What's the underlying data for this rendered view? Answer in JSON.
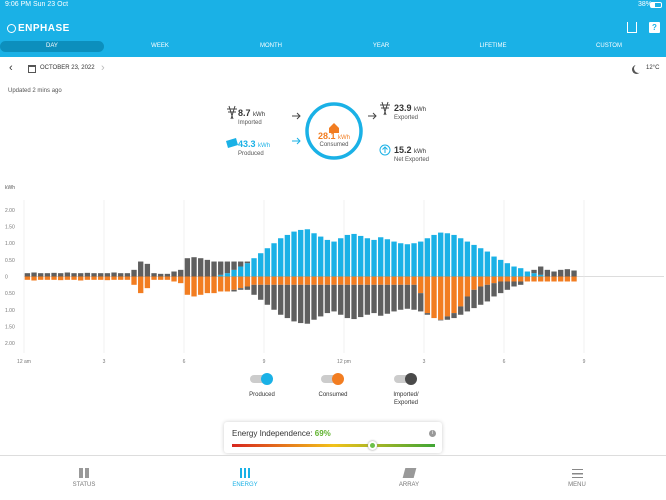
{
  "status_bar": {
    "time": "9:06 PM",
    "date": "Sun 23 Oct",
    "battery": "38%"
  },
  "header": {
    "brand": "ENPHASE",
    "tabs": [
      "DAY",
      "WEEK",
      "MONTH",
      "YEAR",
      "LIFETIME",
      "CUSTOM"
    ]
  },
  "date_nav": {
    "date": "OCTOBER 23, 2022",
    "temperature": "12°C"
  },
  "updated": "Updated 2 mins ago",
  "summary": {
    "imported": {
      "value": 8.7,
      "unit": "kWh",
      "label": "Imported"
    },
    "produced": {
      "value": 43.3,
      "unit": "kWh",
      "label": "Produced"
    },
    "consumed": {
      "value": 28.1,
      "unit": "kWh",
      "label": "Consumed"
    },
    "exported": {
      "value": 23.9,
      "unit": "kWh",
      "label": "Exported"
    },
    "net_exported": {
      "value": 15.2,
      "unit": "kWh",
      "label": "Net Exported"
    }
  },
  "chart_data": {
    "type": "bar",
    "y_label": "kWh",
    "grid": true,
    "x": [
      0,
      0.25,
      0.5,
      0.75,
      1,
      1.25,
      1.5,
      1.75,
      2,
      2.25,
      2.5,
      2.75,
      3,
      3.25,
      3.5,
      3.75,
      4,
      4.25,
      4.5,
      4.75,
      5,
      5.25,
      5.5,
      5.75,
      6,
      6.25,
      6.5,
      6.75,
      7,
      7.25,
      7.5,
      7.75,
      8,
      8.25,
      8.5,
      8.75,
      9,
      9.25,
      9.5,
      9.75,
      10,
      10.25,
      10.5,
      10.75,
      11,
      11.25,
      11.5,
      11.75,
      12,
      12.25,
      12.5,
      12.75,
      13,
      13.25,
      13.5,
      13.75,
      14,
      14.25,
      14.5,
      14.75,
      15,
      15.25,
      15.5,
      15.75,
      16,
      16.25,
      16.5,
      16.75,
      17,
      17.25,
      17.5,
      17.75,
      18,
      18.25,
      18.5,
      18.75,
      19,
      19.25,
      19.5,
      19.75,
      20,
      20.25,
      20.5
    ],
    "series": [
      {
        "name": "Produced",
        "color": "#1ab1e6",
        "values": [
          0,
          0,
          0,
          0,
          0,
          0,
          0,
          0,
          0,
          0,
          0,
          0,
          0,
          0,
          0,
          0,
          0,
          0,
          0,
          0,
          0,
          0,
          0,
          0,
          0,
          0,
          0,
          0,
          0,
          0.05,
          0.1,
          0.2,
          0.3,
          0.4,
          0.55,
          0.7,
          0.85,
          1,
          1.15,
          1.25,
          1.35,
          1.4,
          1.42,
          1.3,
          1.2,
          1.1,
          1.05,
          1.15,
          1.25,
          1.28,
          1.22,
          1.15,
          1.1,
          1.18,
          1.12,
          1.05,
          1,
          0.97,
          1,
          1.05,
          1.15,
          1.25,
          1.32,
          1.3,
          1.25,
          1.15,
          1.05,
          0.95,
          0.85,
          0.75,
          0.6,
          0.5,
          0.4,
          0.3,
          0.25,
          0.15,
          0.1,
          0.05,
          0,
          0,
          0,
          0,
          0
        ]
      },
      {
        "name": "Imported",
        "color": "#5f5f5f",
        "values": [
          0.1,
          0.12,
          0.1,
          0.1,
          0.11,
          0.1,
          0.12,
          0.1,
          0.1,
          0.11,
          0.1,
          0.1,
          0.1,
          0.12,
          0.1,
          0.1,
          0.2,
          0.45,
          0.38,
          0.1,
          0.08,
          0.08,
          0.15,
          0.2,
          0.55,
          0.58,
          0.55,
          0.5,
          0.45,
          0.4,
          0.35,
          0.25,
          0.15,
          0.05,
          0,
          0,
          0,
          0,
          0,
          0,
          0,
          0,
          0,
          0,
          0,
          0,
          0,
          0,
          0,
          0,
          0,
          0,
          0,
          0,
          0,
          0,
          0,
          0,
          0,
          0,
          0,
          0,
          0,
          0,
          0,
          0,
          0,
          0,
          0,
          0,
          0,
          0,
          0,
          0,
          0,
          0,
          0.1,
          0.25,
          0.2,
          0.15,
          0.2,
          0.22,
          0.18
        ]
      },
      {
        "name": "Consumed",
        "color": "#f27d21",
        "values": [
          -0.1,
          -0.12,
          -0.1,
          -0.1,
          -0.1,
          -0.11,
          -0.1,
          -0.1,
          -0.12,
          -0.1,
          -0.1,
          -0.1,
          -0.11,
          -0.1,
          -0.1,
          -0.1,
          -0.25,
          -0.5,
          -0.35,
          -0.1,
          -0.1,
          -0.1,
          -0.15,
          -0.2,
          -0.55,
          -0.6,
          -0.55,
          -0.5,
          -0.5,
          -0.45,
          -0.45,
          -0.4,
          -0.35,
          -0.3,
          -0.25,
          -0.25,
          -0.25,
          -0.25,
          -0.25,
          -0.25,
          -0.25,
          -0.25,
          -0.25,
          -0.25,
          -0.25,
          -0.25,
          -0.25,
          -0.25,
          -0.25,
          -0.25,
          -0.25,
          -0.25,
          -0.25,
          -0.25,
          -0.25,
          -0.25,
          -0.25,
          -0.25,
          -0.25,
          -0.5,
          -1.1,
          -1.25,
          -1.3,
          -1.2,
          -1.1,
          -0.9,
          -0.6,
          -0.4,
          -0.3,
          -0.25,
          -0.2,
          -0.15,
          -0.15,
          -0.15,
          -0.15,
          -0.15,
          -0.15,
          -0.15,
          -0.15,
          -0.15,
          -0.15,
          -0.15,
          -0.15
        ]
      },
      {
        "name": "Exported",
        "color": "#5f5f5f",
        "values": [
          0,
          0,
          0,
          0,
          0,
          0,
          0,
          0,
          0,
          0,
          0,
          0,
          0,
          0,
          0,
          0,
          0,
          0,
          0,
          0,
          0,
          0,
          0,
          0,
          0,
          0,
          0,
          0,
          0,
          0,
          0,
          -0.05,
          -0.05,
          -0.1,
          -0.3,
          -0.45,
          -0.6,
          -0.75,
          -0.9,
          -1,
          -1.1,
          -1.15,
          -1.17,
          -1.05,
          -0.95,
          -0.85,
          -0.8,
          -0.9,
          -1,
          -1.03,
          -0.97,
          -0.9,
          -0.85,
          -0.93,
          -0.87,
          -0.8,
          -0.75,
          -0.72,
          -0.75,
          -0.55,
          -0.05,
          0,
          -0.02,
          -0.1,
          -0.15,
          -0.25,
          -0.45,
          -0.55,
          -0.55,
          -0.5,
          -0.4,
          -0.35,
          -0.25,
          -0.15,
          -0.1,
          0,
          0,
          0,
          0,
          0,
          0,
          0,
          0
        ]
      }
    ],
    "xlim": [
      0,
      24
    ],
    "ylim": [
      -2.3,
      2.3
    ],
    "xticks": [
      {
        "value": 0,
        "label": "12 am"
      },
      3,
      6,
      9,
      {
        "value": 12,
        "label": "12 pm"
      },
      {
        "value": 15,
        "label": "3"
      },
      {
        "value": 18,
        "label": "6"
      },
      {
        "value": 21,
        "label": "9"
      }
    ],
    "yticks": [
      {
        "value": 2,
        "label": "2.00"
      },
      {
        "value": 1.5,
        "label": "1.50"
      },
      {
        "value": 1,
        "label": "1.00"
      },
      {
        "value": 0.5,
        "label": "0.50"
      },
      0,
      {
        "value": -0.5,
        "label": "0.50"
      },
      {
        "value": -1,
        "label": "1.00"
      },
      {
        "value": -1.5,
        "label": "1.50"
      },
      {
        "value": -2,
        "label": "2.00"
      }
    ]
  },
  "legend": [
    {
      "label": "Produced",
      "color": "#1ab1e6"
    },
    {
      "label": "Consumed",
      "color": "#f27d21"
    },
    {
      "label": "Imported/ Exported",
      "color": "#4a4a4a"
    }
  ],
  "energy_independence": {
    "label": "Energy Independence:",
    "score": {
      "value": 69,
      "label": "69%"
    }
  },
  "nav": [
    "STATUS",
    "ENERGY",
    "ARRAY",
    "MENU"
  ]
}
